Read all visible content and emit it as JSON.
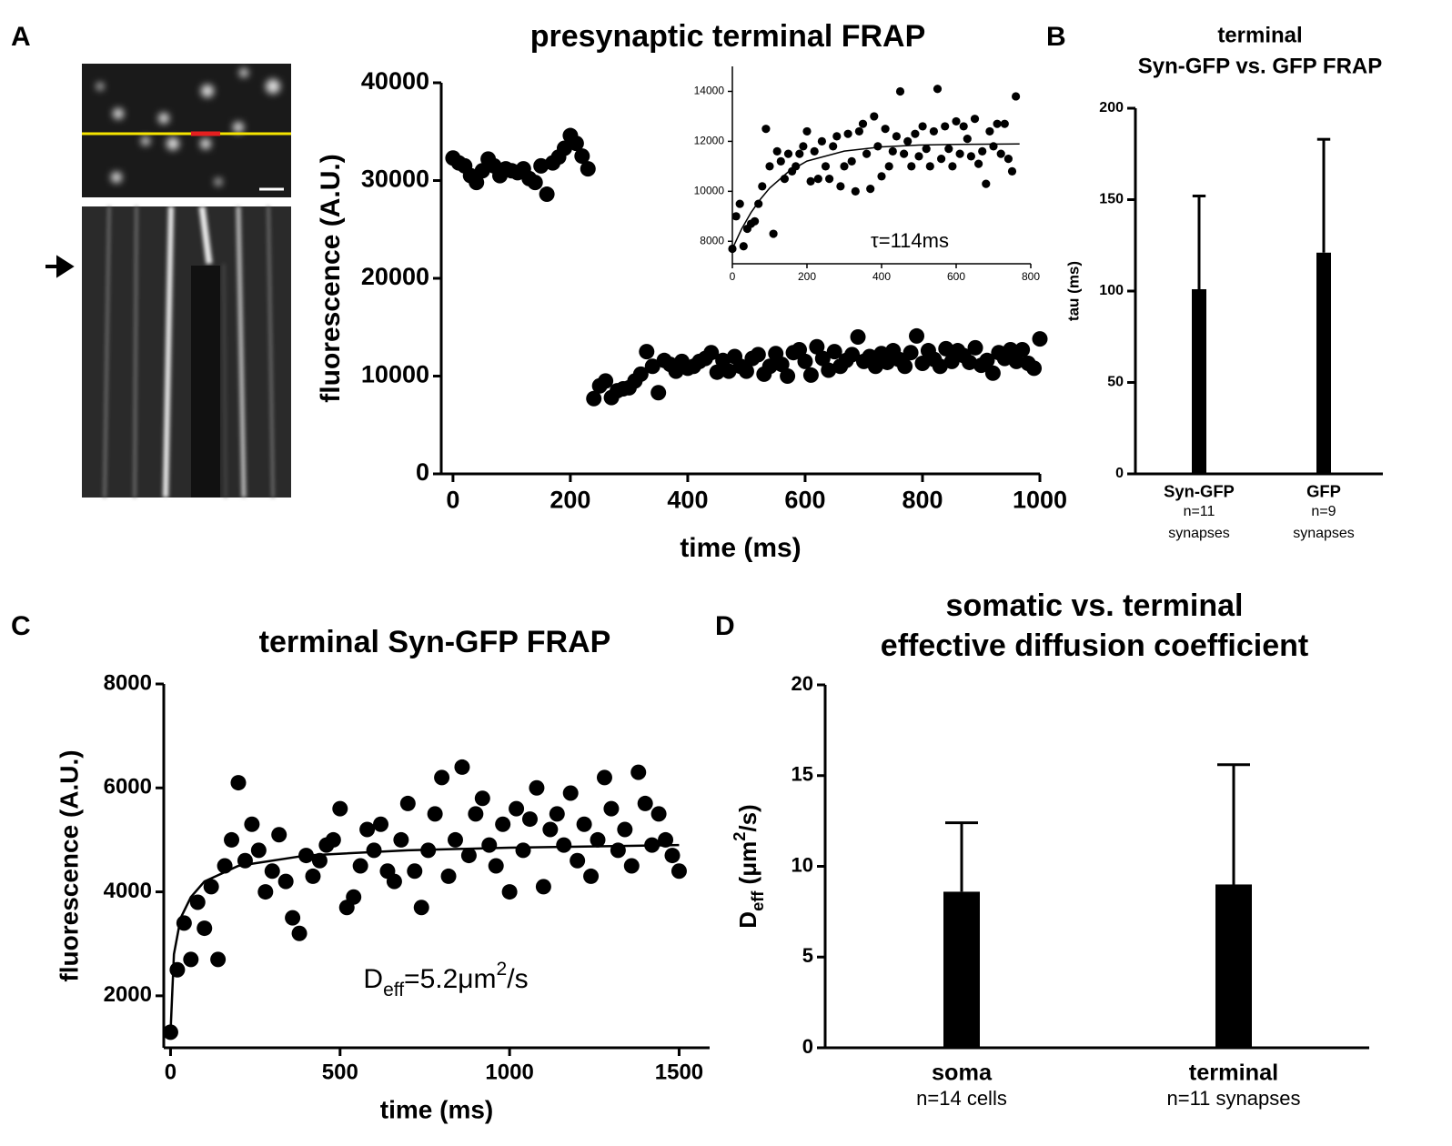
{
  "chart_data": [
    {
      "type": "scatter",
      "panel": "A",
      "title": [
        "presynaptic terminal FRAP"
      ],
      "x_label": "time (ms)",
      "y_label": "fluorescence (A.U.)",
      "xlim": [
        -20,
        1000
      ],
      "ylim": [
        0,
        40000
      ],
      "xticks": [
        0,
        200,
        400,
        600,
        800,
        1000
      ],
      "yticks": [
        0,
        10000,
        20000,
        30000,
        40000
      ],
      "series": [
        {
          "color": "#000000",
          "x": [
            0,
            10,
            20,
            30,
            40,
            50,
            60,
            70,
            80,
            90,
            100,
            110,
            120,
            130,
            140,
            150,
            160,
            170,
            180,
            190,
            200,
            210,
            220,
            230
          ],
          "values": [
            32300,
            31800,
            31500,
            30500,
            29800,
            31000,
            32200,
            31500,
            30500,
            31200,
            31000,
            30800,
            31200,
            30200,
            29800,
            31500,
            28600,
            31800,
            32400,
            33300,
            34600,
            33800,
            32500,
            31200
          ]
        },
        {
          "color": "#000000",
          "x": [
            240,
            250,
            260,
            270,
            280,
            290,
            300,
            310,
            320,
            330,
            340,
            350,
            360,
            370,
            380,
            390,
            400,
            410,
            420,
            430,
            440,
            450,
            460,
            470,
            480,
            490,
            500,
            510,
            520,
            530,
            540,
            550,
            560,
            570,
            580,
            590,
            600,
            610,
            620,
            630,
            640,
            650,
            660,
            670,
            680,
            690,
            700,
            710,
            720,
            730,
            740,
            750,
            760,
            770,
            780,
            790,
            800,
            810,
            820,
            830,
            840,
            850,
            860,
            870,
            880,
            890,
            900,
            910,
            920,
            930,
            940,
            950,
            960,
            970,
            980,
            990,
            1000
          ],
          "values": [
            7700,
            9000,
            9500,
            7800,
            8500,
            8700,
            8800,
            9500,
            10200,
            12500,
            11000,
            8300,
            11600,
            11200,
            10500,
            11500,
            10800,
            11000,
            11500,
            11800,
            12400,
            10400,
            11600,
            10500,
            12000,
            11000,
            10500,
            11800,
            12200,
            10200,
            11000,
            12300,
            11200,
            10000,
            12400,
            12700,
            11500,
            10100,
            13000,
            11800,
            10600,
            12500,
            11000,
            11600,
            12200,
            14000,
            11500,
            12000,
            11000,
            12300,
            11400,
            12600,
            11700,
            11000,
            12400,
            14100,
            11300,
            12600,
            11700,
            11000,
            12800,
            11500,
            12600,
            12100,
            11400,
            12900,
            11100,
            11600,
            10300,
            12400,
            11800,
            12700,
            11500,
            12700,
            11300,
            10800,
            13800
          ]
        }
      ]
    },
    {
      "type": "scatter",
      "annotation": "τ=114ms",
      "xlim": [
        0,
        800
      ],
      "ylim": [
        7100,
        15000
      ],
      "xticks": [
        0,
        200,
        400,
        600,
        800
      ],
      "yticks": [
        8000,
        10000,
        12000,
        14000
      ],
      "series": [
        {
          "color": "#000000",
          "x": [
            0,
            10,
            20,
            30,
            40,
            50,
            60,
            70,
            80,
            90,
            100,
            110,
            120,
            130,
            140,
            150,
            160,
            170,
            180,
            190,
            200,
            210,
            220,
            230,
            240,
            250,
            260,
            270,
            280,
            290,
            300,
            310,
            320,
            330,
            340,
            350,
            360,
            370,
            380,
            390,
            400,
            410,
            420,
            430,
            440,
            450,
            460,
            470,
            480,
            490,
            500,
            510,
            520,
            530,
            540,
            550,
            560,
            570,
            580,
            590,
            600,
            610,
            620,
            630,
            640,
            650,
            660,
            670,
            680,
            690,
            700,
            710,
            720,
            730,
            740,
            750,
            760
          ],
          "values": [
            7700,
            9000,
            9500,
            7800,
            8500,
            8700,
            8800,
            9500,
            10200,
            12500,
            11000,
            8300,
            11600,
            11200,
            10500,
            11500,
            10800,
            11000,
            11500,
            11800,
            12400,
            10400,
            11600,
            10500,
            12000,
            11000,
            10500,
            11800,
            12200,
            10200,
            11000,
            12300,
            11200,
            10000,
            12400,
            12700,
            11500,
            10100,
            13000,
            11800,
            10600,
            12500,
            11000,
            11600,
            12200,
            14000,
            11500,
            12000,
            11000,
            12300,
            11400,
            12600,
            11700,
            11000,
            12400,
            14100,
            11300,
            12600,
            11700,
            11000,
            12800,
            11500,
            12600,
            12100,
            11400,
            12900,
            11100,
            11600,
            10300,
            12400,
            11800,
            12700,
            11500,
            12700,
            11300,
            10800,
            13800
          ]
        }
      ],
      "fit": {
        "color": "#000000",
        "x": [
          0,
          25,
          50,
          75,
          100,
          150,
          200,
          300,
          400,
          500,
          600,
          770
        ],
        "values": [
          7700,
          8500,
          9150,
          9680,
          10130,
          10780,
          11210,
          11610,
          11780,
          11850,
          11880,
          11895
        ]
      }
    },
    {
      "type": "bar",
      "panel": "B",
      "title": [
        "terminal",
        "Syn-GFP vs. GFP FRAP"
      ],
      "y_label": "tau (ms)",
      "categories": [
        "Syn-GFP",
        "GFP"
      ],
      "category_notes": [
        [
          "n=11",
          "synapses"
        ],
        [
          "n=9",
          "synapses"
        ]
      ],
      "values": [
        101,
        121
      ],
      "errors": [
        51,
        62
      ],
      "color": "#000000",
      "ylim": [
        0,
        200
      ],
      "yticks": [
        0,
        50,
        100,
        150,
        200
      ]
    },
    {
      "type": "scatter",
      "panel": "C",
      "title": [
        "terminal Syn-GFP FRAP"
      ],
      "x_label": "time (ms)",
      "y_label": "fluorescence (A.U.)",
      "annotation_parts": [
        {
          "text": "D"
        },
        {
          "text": "eff",
          "shift": "sub"
        },
        {
          "text": "=5.2μm"
        },
        {
          "text": "2",
          "shift": "super"
        },
        {
          "text": "/s"
        }
      ],
      "xlim": [
        -20,
        1590
      ],
      "ylim": [
        1000,
        8000
      ],
      "xticks": [
        0,
        500,
        1000,
        1500
      ],
      "yticks": [
        2000,
        4000,
        6000,
        8000
      ],
      "series": [
        {
          "color": "#000000",
          "x": [
            0,
            20,
            40,
            60,
            80,
            100,
            120,
            140,
            160,
            180,
            200,
            220,
            240,
            260,
            280,
            300,
            320,
            340,
            360,
            380,
            400,
            420,
            440,
            460,
            480,
            500,
            520,
            540,
            560,
            580,
            600,
            620,
            640,
            660,
            680,
            700,
            720,
            740,
            760,
            780,
            800,
            820,
            840,
            860,
            880,
            900,
            920,
            940,
            960,
            980,
            1000,
            1020,
            1040,
            1060,
            1080,
            1100,
            1120,
            1140,
            1160,
            1180,
            1200,
            1220,
            1240,
            1260,
            1280,
            1300,
            1320,
            1340,
            1360,
            1380,
            1400,
            1420,
            1440,
            1460,
            1480,
            1500
          ],
          "values": [
            1300,
            2500,
            3400,
            2700,
            3800,
            3300,
            4100,
            2700,
            4500,
            5000,
            6100,
            4600,
            5300,
            4800,
            4000,
            4400,
            5100,
            4200,
            3500,
            3200,
            4700,
            4300,
            4600,
            4900,
            5000,
            5600,
            3700,
            3900,
            4500,
            5200,
            4800,
            5300,
            4400,
            4200,
            5000,
            5700,
            4400,
            3700,
            4800,
            5500,
            6200,
            4300,
            5000,
            6400,
            4700,
            5500,
            5800,
            4900,
            4500,
            5300,
            4000,
            5600,
            4800,
            5400,
            6000,
            4100,
            5200,
            5500,
            4900,
            5900,
            4600,
            5300,
            4300,
            5000,
            6200,
            5600,
            4800,
            5200,
            4500,
            6300,
            5700,
            4900,
            5500,
            5000,
            4700,
            4400
          ]
        }
      ],
      "fit": {
        "color": "#000000",
        "x": [
          0,
          10,
          30,
          60,
          100,
          200,
          400,
          700,
          1000,
          1500
        ],
        "values": [
          1300,
          2800,
          3500,
          3900,
          4200,
          4500,
          4700,
          4800,
          4850,
          4900
        ]
      }
    },
    {
      "type": "bar",
      "panel": "D",
      "title": [
        "somatic vs. terminal",
        "effective diffusion coefficient"
      ],
      "y_label_parts": [
        {
          "text": "D"
        },
        {
          "text": "eff",
          "shift": "sub"
        },
        {
          "text": " (μm"
        },
        {
          "text": "2",
          "shift": "super"
        },
        {
          "text": "/s)"
        }
      ],
      "categories": [
        "soma",
        "terminal"
      ],
      "category_notes": [
        [
          "n=14 cells"
        ],
        [
          "n=11 synapses"
        ]
      ],
      "values": [
        8.6,
        9.0
      ],
      "errors": [
        3.8,
        6.6
      ],
      "color": "#000000",
      "ylim": [
        0,
        20
      ],
      "yticks": [
        0,
        5,
        10,
        15,
        20
      ]
    }
  ]
}
